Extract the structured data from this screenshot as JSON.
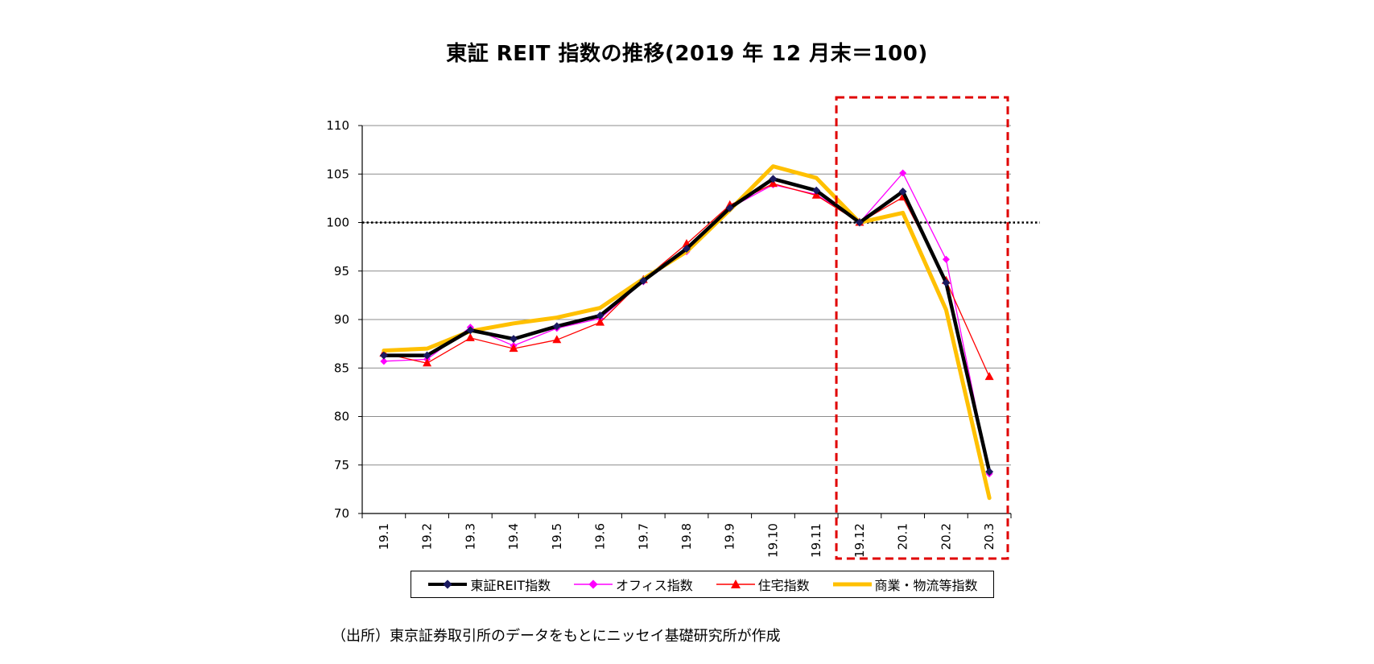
{
  "title": "東証 REIT 指数の推移(2019 年 12 月末＝100)",
  "source": "（出所）東京証券取引所のデータをもとにニッセイ基礎研究所が作成",
  "chart_data": {
    "type": "line",
    "categories": [
      "19.1",
      "19.2",
      "19.3",
      "19.4",
      "19.5",
      "19.6",
      "19.7",
      "19.8",
      "19.9",
      "19.10",
      "19.11",
      "19.12",
      "20.1",
      "20.2",
      "20.3"
    ],
    "ylim": [
      70,
      110
    ],
    "yticks": [
      70,
      75,
      80,
      85,
      90,
      95,
      100,
      105,
      110
    ],
    "grid": true,
    "legend_position": "bottom",
    "reference_line": 100,
    "highlight_range": [
      "19.12",
      "20.3"
    ],
    "series": [
      {
        "name": "東証REIT指数",
        "color": "#000000",
        "marker": "diamond",
        "values": [
          86.3,
          86.3,
          88.9,
          88.0,
          89.3,
          90.4,
          94.0,
          97.3,
          101.5,
          104.5,
          103.3,
          100.0,
          103.2,
          93.8,
          74.3
        ]
      },
      {
        "name": "オフィス指数",
        "color": "#ff00ff",
        "marker": "diamond",
        "values": [
          85.7,
          85.9,
          89.2,
          87.3,
          89.1,
          90.1,
          93.9,
          97.0,
          101.5,
          103.9,
          102.9,
          100.0,
          105.1,
          96.2,
          74.1
        ]
      },
      {
        "name": "住宅指数",
        "color": "#ff0000",
        "marker": "triangle",
        "values": [
          86.5,
          85.5,
          88.1,
          87.0,
          87.9,
          89.7,
          94.1,
          97.8,
          101.8,
          104.0,
          102.8,
          100.0,
          102.6,
          94.0,
          84.1
        ]
      },
      {
        "name": "商業・物流等指数",
        "color": "#ffc000",
        "marker": "none",
        "values": [
          86.8,
          87.0,
          88.8,
          89.6,
          90.2,
          91.2,
          94.2,
          97.0,
          101.3,
          105.8,
          104.6,
          100.0,
          101.0,
          91.0,
          71.6
        ]
      }
    ]
  }
}
